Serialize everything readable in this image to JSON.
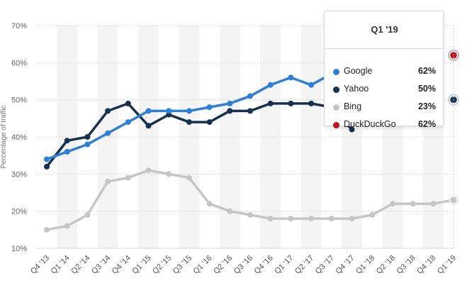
{
  "chart_data": {
    "type": "line",
    "ylabel": "Percentage of traffic",
    "y_ticks": [
      "10%",
      "20%",
      "30%",
      "40%",
      "50%",
      "60%",
      "70%"
    ],
    "ylim": [
      10,
      70
    ],
    "categories": [
      "Q4 '13",
      "Q1 '14",
      "Q2 '14",
      "Q3 '14",
      "Q4 '14",
      "Q1 '15",
      "Q2 '15",
      "Q3 '15",
      "Q1 '16",
      "Q2 '16",
      "Q3 '16",
      "Q4 '16",
      "Q1 '17",
      "Q2 '17",
      "Q3 '17",
      "Q4 '17",
      "Q1 '18",
      "Q2 '18",
      "Q3 '18",
      "Q4 '18",
      "Q1 '19"
    ],
    "grid": "horizontal",
    "legend": "tooltip",
    "series": [
      {
        "name": "Google",
        "color": "#2f7ed8",
        "values": [
          34,
          36,
          38,
          41,
          44,
          47,
          47,
          47,
          48,
          49,
          51,
          54,
          56,
          54,
          57,
          null,
          null,
          null,
          null,
          null,
          62
        ]
      },
      {
        "name": "Yahoo",
        "color": "#16324f",
        "values": [
          32,
          39,
          40,
          47,
          49,
          43,
          46,
          44,
          44,
          47,
          47,
          49,
          49,
          49,
          48,
          42,
          null,
          null,
          null,
          null,
          50
        ]
      },
      {
        "name": "Bing",
        "color": "#c6c6c6",
        "values": [
          15,
          16,
          19,
          28,
          29,
          31,
          30,
          29,
          22,
          20,
          19,
          18,
          18,
          18,
          18,
          18,
          19,
          22,
          22,
          22,
          23
        ]
      },
      {
        "name": "DuckDuckGo",
        "color": "#c0101a",
        "values": [
          null,
          null,
          null,
          null,
          null,
          null,
          null,
          null,
          null,
          null,
          null,
          null,
          null,
          null,
          null,
          null,
          null,
          null,
          null,
          null,
          62
        ]
      }
    ]
  },
  "tooltip": {
    "title": "Q1 '19",
    "rows": [
      {
        "name": "Google",
        "value": "62%",
        "color": "#2f7ed8"
      },
      {
        "name": "Yahoo",
        "value": "50%",
        "color": "#16324f"
      },
      {
        "name": "Bing",
        "value": "23%",
        "color": "#c6c6c6"
      },
      {
        "name": "DuckDuckGo",
        "value": "62%",
        "color": "#c0101a"
      }
    ]
  }
}
